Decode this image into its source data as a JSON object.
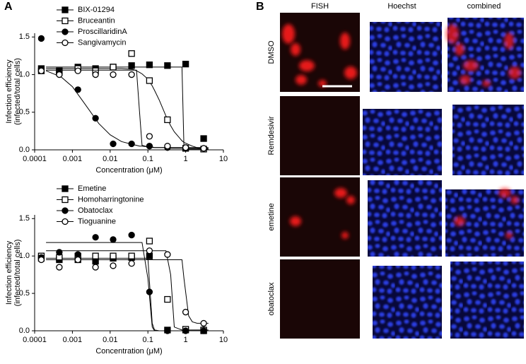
{
  "panel_labels": [
    "A",
    "B"
  ],
  "chart_data": [
    {
      "type": "scatter",
      "xlabel": "Concentration (μM)",
      "ylabel": [
        "Infection efficiency",
        "(infected/total cells)"
      ],
      "xscale": "log",
      "xlim": [
        0.0001,
        10
      ],
      "xticks": [
        0.0001,
        0.001,
        0.01,
        0.1,
        1,
        10
      ],
      "ylim": [
        0,
        1.55
      ],
      "yticks": [
        {
          "value": 0,
          "label": "0.0"
        },
        {
          "value": 0.5,
          "label": "0.5"
        },
        {
          "value": 1,
          "label": "1.0"
        },
        {
          "value": 1.5,
          "label": "1.5"
        }
      ],
      "x": [
        0.00015,
        0.00045,
        0.0014,
        0.0041,
        0.012,
        0.037,
        0.11,
        0.33,
        1,
        3
      ],
      "fit_x": [
        0.0002,
        0.0005,
        0.001,
        0.002,
        0.005,
        0.01,
        0.02,
        0.04,
        0.05,
        0.06,
        0.07,
        0.1,
        0.13,
        0.15,
        0.2,
        0.3,
        0.4,
        0.5,
        0.8,
        0.9,
        1.2,
        1.5,
        2,
        4
      ],
      "series": [
        {
          "name": "BIX-01294",
          "marker": "square",
          "filled": true,
          "color": "#000000",
          "values": [
            1.08,
            1.05,
            1.1,
            1.08,
            1.1,
            1.12,
            1.13,
            1.12,
            1.14,
            0.15
          ],
          "fit": [
            1.1,
            1.1,
            1.1,
            1.1,
            1.1,
            1.1,
            1.1,
            1.1,
            1.1,
            1.1,
            1.1,
            1.1,
            1.1,
            1.1,
            1.1,
            1.1,
            1.1,
            1.1,
            1.1,
            0.03,
            0.01,
            0.01,
            0.01,
            0.01
          ]
        },
        {
          "name": "Bruceantin",
          "marker": "square",
          "filled": false,
          "color": "#000000",
          "values": [
            1.05,
            1.03,
            1.08,
            1.05,
            1.1,
            1.28,
            0.92,
            0.4,
            0.02,
            0.01
          ],
          "fit": [
            1.08,
            1.08,
            1.08,
            1.08,
            1.08,
            1.08,
            1.08,
            1.07,
            1.05,
            1.03,
            1.01,
            0.94,
            0.85,
            0.79,
            0.66,
            0.45,
            0.32,
            0.24,
            0.12,
            0.1,
            0.07,
            0.05,
            0.03,
            0.01
          ]
        },
        {
          "name": "ProscillaridinA",
          "marker": "circle",
          "filled": true,
          "color": "#000000",
          "values": [
            1.48,
            1.02,
            0.8,
            0.42,
            0.08,
            0.08,
            0.05,
            0.03,
            0.02,
            0.02
          ],
          "fit": [
            1.05,
            0.97,
            0.84,
            0.63,
            0.35,
            0.2,
            0.11,
            0.07,
            0.06,
            0.05,
            0.05,
            0.04,
            0.04,
            0.03,
            0.03,
            0.03,
            0.02,
            0.02,
            0.02,
            0.02,
            0.02,
            0.02,
            0.02,
            0.02
          ]
        },
        {
          "name": "Sangivamycin",
          "marker": "circle",
          "filled": false,
          "color": "#000000",
          "values": [
            1.05,
            1.0,
            1.05,
            1.0,
            1.0,
            1.0,
            0.18,
            0.05,
            0.03,
            0.02
          ],
          "fit": [
            1.06,
            1.06,
            1.06,
            1.06,
            1.06,
            1.06,
            1.06,
            1.06,
            1.06,
            0.5,
            0.06,
            0.04,
            0.03,
            0.03,
            0.03,
            0.03,
            0.03,
            0.03,
            0.03,
            0.03,
            0.03,
            0.03,
            0.03,
            0.03
          ]
        }
      ]
    },
    {
      "type": "scatter",
      "xlabel": "Concentration (μM)",
      "ylabel": [
        "Infection efficiency",
        "(infected/total cells)"
      ],
      "xscale": "log",
      "xlim": [
        0.0001,
        10
      ],
      "xticks": [
        0.0001,
        0.001,
        0.01,
        0.1,
        1,
        10
      ],
      "ylim": [
        0,
        1.55
      ],
      "yticks": [
        {
          "value": 0,
          "label": "0.0"
        },
        {
          "value": 0.5,
          "label": "0.5"
        },
        {
          "value": 1,
          "label": "1.0"
        },
        {
          "value": 1.5,
          "label": "1.5"
        }
      ],
      "x": [
        0.00015,
        0.00045,
        0.0014,
        0.0041,
        0.012,
        0.037,
        0.11,
        0.33,
        1,
        3
      ],
      "fit_x": [
        0.0002,
        0.0005,
        0.001,
        0.002,
        0.005,
        0.01,
        0.02,
        0.04,
        0.05,
        0.06,
        0.07,
        0.1,
        0.13,
        0.15,
        0.2,
        0.3,
        0.4,
        0.5,
        0.8,
        0.9,
        1.2,
        1.5,
        2,
        4
      ],
      "series": [
        {
          "name": "Emetine",
          "marker": "square",
          "filled": true,
          "color": "#000000",
          "values": [
            0.97,
            0.95,
            0.95,
            0.93,
            0.97,
            0.98,
            1.0,
            0.01,
            0.01,
            0.0
          ],
          "fit": [
            0.97,
            0.97,
            0.97,
            0.97,
            0.97,
            0.97,
            0.97,
            0.97,
            0.97,
            0.97,
            0.97,
            0.97,
            0.1,
            0.01,
            0.0,
            0.0,
            0.0,
            0.0,
            0.0,
            0.0,
            0.0,
            0.0,
            0.0,
            0.0
          ]
        },
        {
          "name": "Homoharringtonine",
          "marker": "square",
          "filled": false,
          "color": "#000000",
          "values": [
            1.0,
            0.98,
            1.0,
            1.0,
            1.0,
            1.0,
            1.2,
            0.42,
            0.02,
            0.01
          ],
          "fit": [
            1.07,
            1.07,
            1.07,
            1.07,
            1.07,
            1.07,
            1.07,
            1.07,
            1.07,
            1.07,
            1.07,
            1.07,
            1.07,
            1.07,
            1.07,
            1.07,
            0.75,
            0.05,
            0.01,
            0.01,
            0.01,
            0.01,
            0.01,
            0.01
          ]
        },
        {
          "name": "Obatoclax",
          "marker": "circle",
          "filled": true,
          "color": "#000000",
          "values": [
            0.98,
            1.05,
            1.02,
            1.25,
            1.22,
            1.28,
            0.52,
            0.0,
            0.0,
            0.0
          ],
          "fit": [
            1.18,
            1.18,
            1.18,
            1.18,
            1.18,
            1.18,
            1.18,
            1.18,
            1.18,
            1.18,
            1.18,
            0.7,
            0.05,
            0.0,
            0.0,
            0.0,
            0.0,
            0.0,
            0.0,
            0.0,
            0.0,
            0.0,
            0.0,
            0.0
          ]
        },
        {
          "name": "Tioguanine",
          "marker": "circle",
          "filled": false,
          "color": "#000000",
          "values": [
            0.95,
            0.85,
            0.95,
            0.85,
            0.87,
            0.9,
            1.07,
            1.02,
            0.25,
            0.1
          ],
          "fit": [
            0.95,
            0.95,
            0.95,
            0.95,
            0.95,
            0.95,
            0.95,
            0.95,
            0.95,
            0.95,
            0.95,
            0.95,
            0.95,
            0.95,
            0.95,
            0.95,
            0.95,
            0.95,
            0.95,
            0.7,
            0.2,
            0.12,
            0.1,
            0.1
          ]
        }
      ]
    }
  ],
  "image_panel": {
    "columns": [
      "FISH",
      "Hoechst",
      "combined"
    ],
    "rows": [
      "DMSO",
      "Remdesivir",
      "emetine",
      "obatoclax"
    ]
  }
}
